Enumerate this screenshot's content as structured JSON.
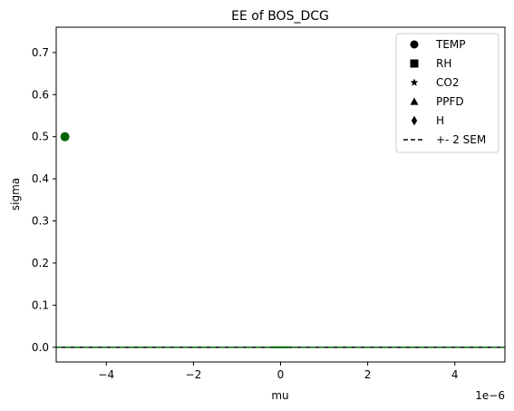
{
  "chart_data": {
    "type": "scatter",
    "title": "EE of BOS_DCG",
    "xlabel": "mu",
    "ylabel": "sigma",
    "x_offset_text": "1e−6",
    "xlim": [
      -5.15,
      5.15
    ],
    "ylim": [
      -0.035,
      0.76
    ],
    "x_scale": 1e-06,
    "x_ticks": [
      -4,
      -2,
      0,
      2,
      4
    ],
    "x_tick_labels": [
      "−4",
      "−2",
      "0",
      "2",
      "4"
    ],
    "y_ticks": [
      0.0,
      0.1,
      0.2,
      0.3,
      0.4,
      0.5,
      0.6,
      0.7
    ],
    "y_tick_labels": [
      "0.0",
      "0.1",
      "0.2",
      "0.3",
      "0.4",
      "0.5",
      "0.6",
      "0.7"
    ],
    "grid": false,
    "legend_placement": "top-right",
    "series": [
      {
        "name": "TEMP",
        "marker": "circle",
        "color": "#006400",
        "points": [
          {
            "x": -4.95,
            "y": 0.5
          }
        ]
      },
      {
        "name": "RH",
        "marker": "square",
        "color": "#006400",
        "points": []
      },
      {
        "name": "CO2",
        "marker": "star",
        "color": "#006400",
        "points": []
      },
      {
        "name": "PPFD",
        "marker": "triangle",
        "color": "#006400",
        "points": []
      },
      {
        "name": "H",
        "marker": "diamond",
        "color": "#006400",
        "points": []
      }
    ],
    "sem_line": {
      "name": "+- 2 SEM",
      "style": "dashed",
      "color": "#006400",
      "y": 0.0
    },
    "legend_entries": [
      {
        "label": "TEMP",
        "marker": "circle"
      },
      {
        "label": "RH",
        "marker": "square"
      },
      {
        "label": "CO2",
        "marker": "star"
      },
      {
        "label": "PPFD",
        "marker": "triangle"
      },
      {
        "label": "H",
        "marker": "diamond"
      },
      {
        "label": "+- 2 SEM",
        "marker": "dashed-line"
      }
    ]
  }
}
